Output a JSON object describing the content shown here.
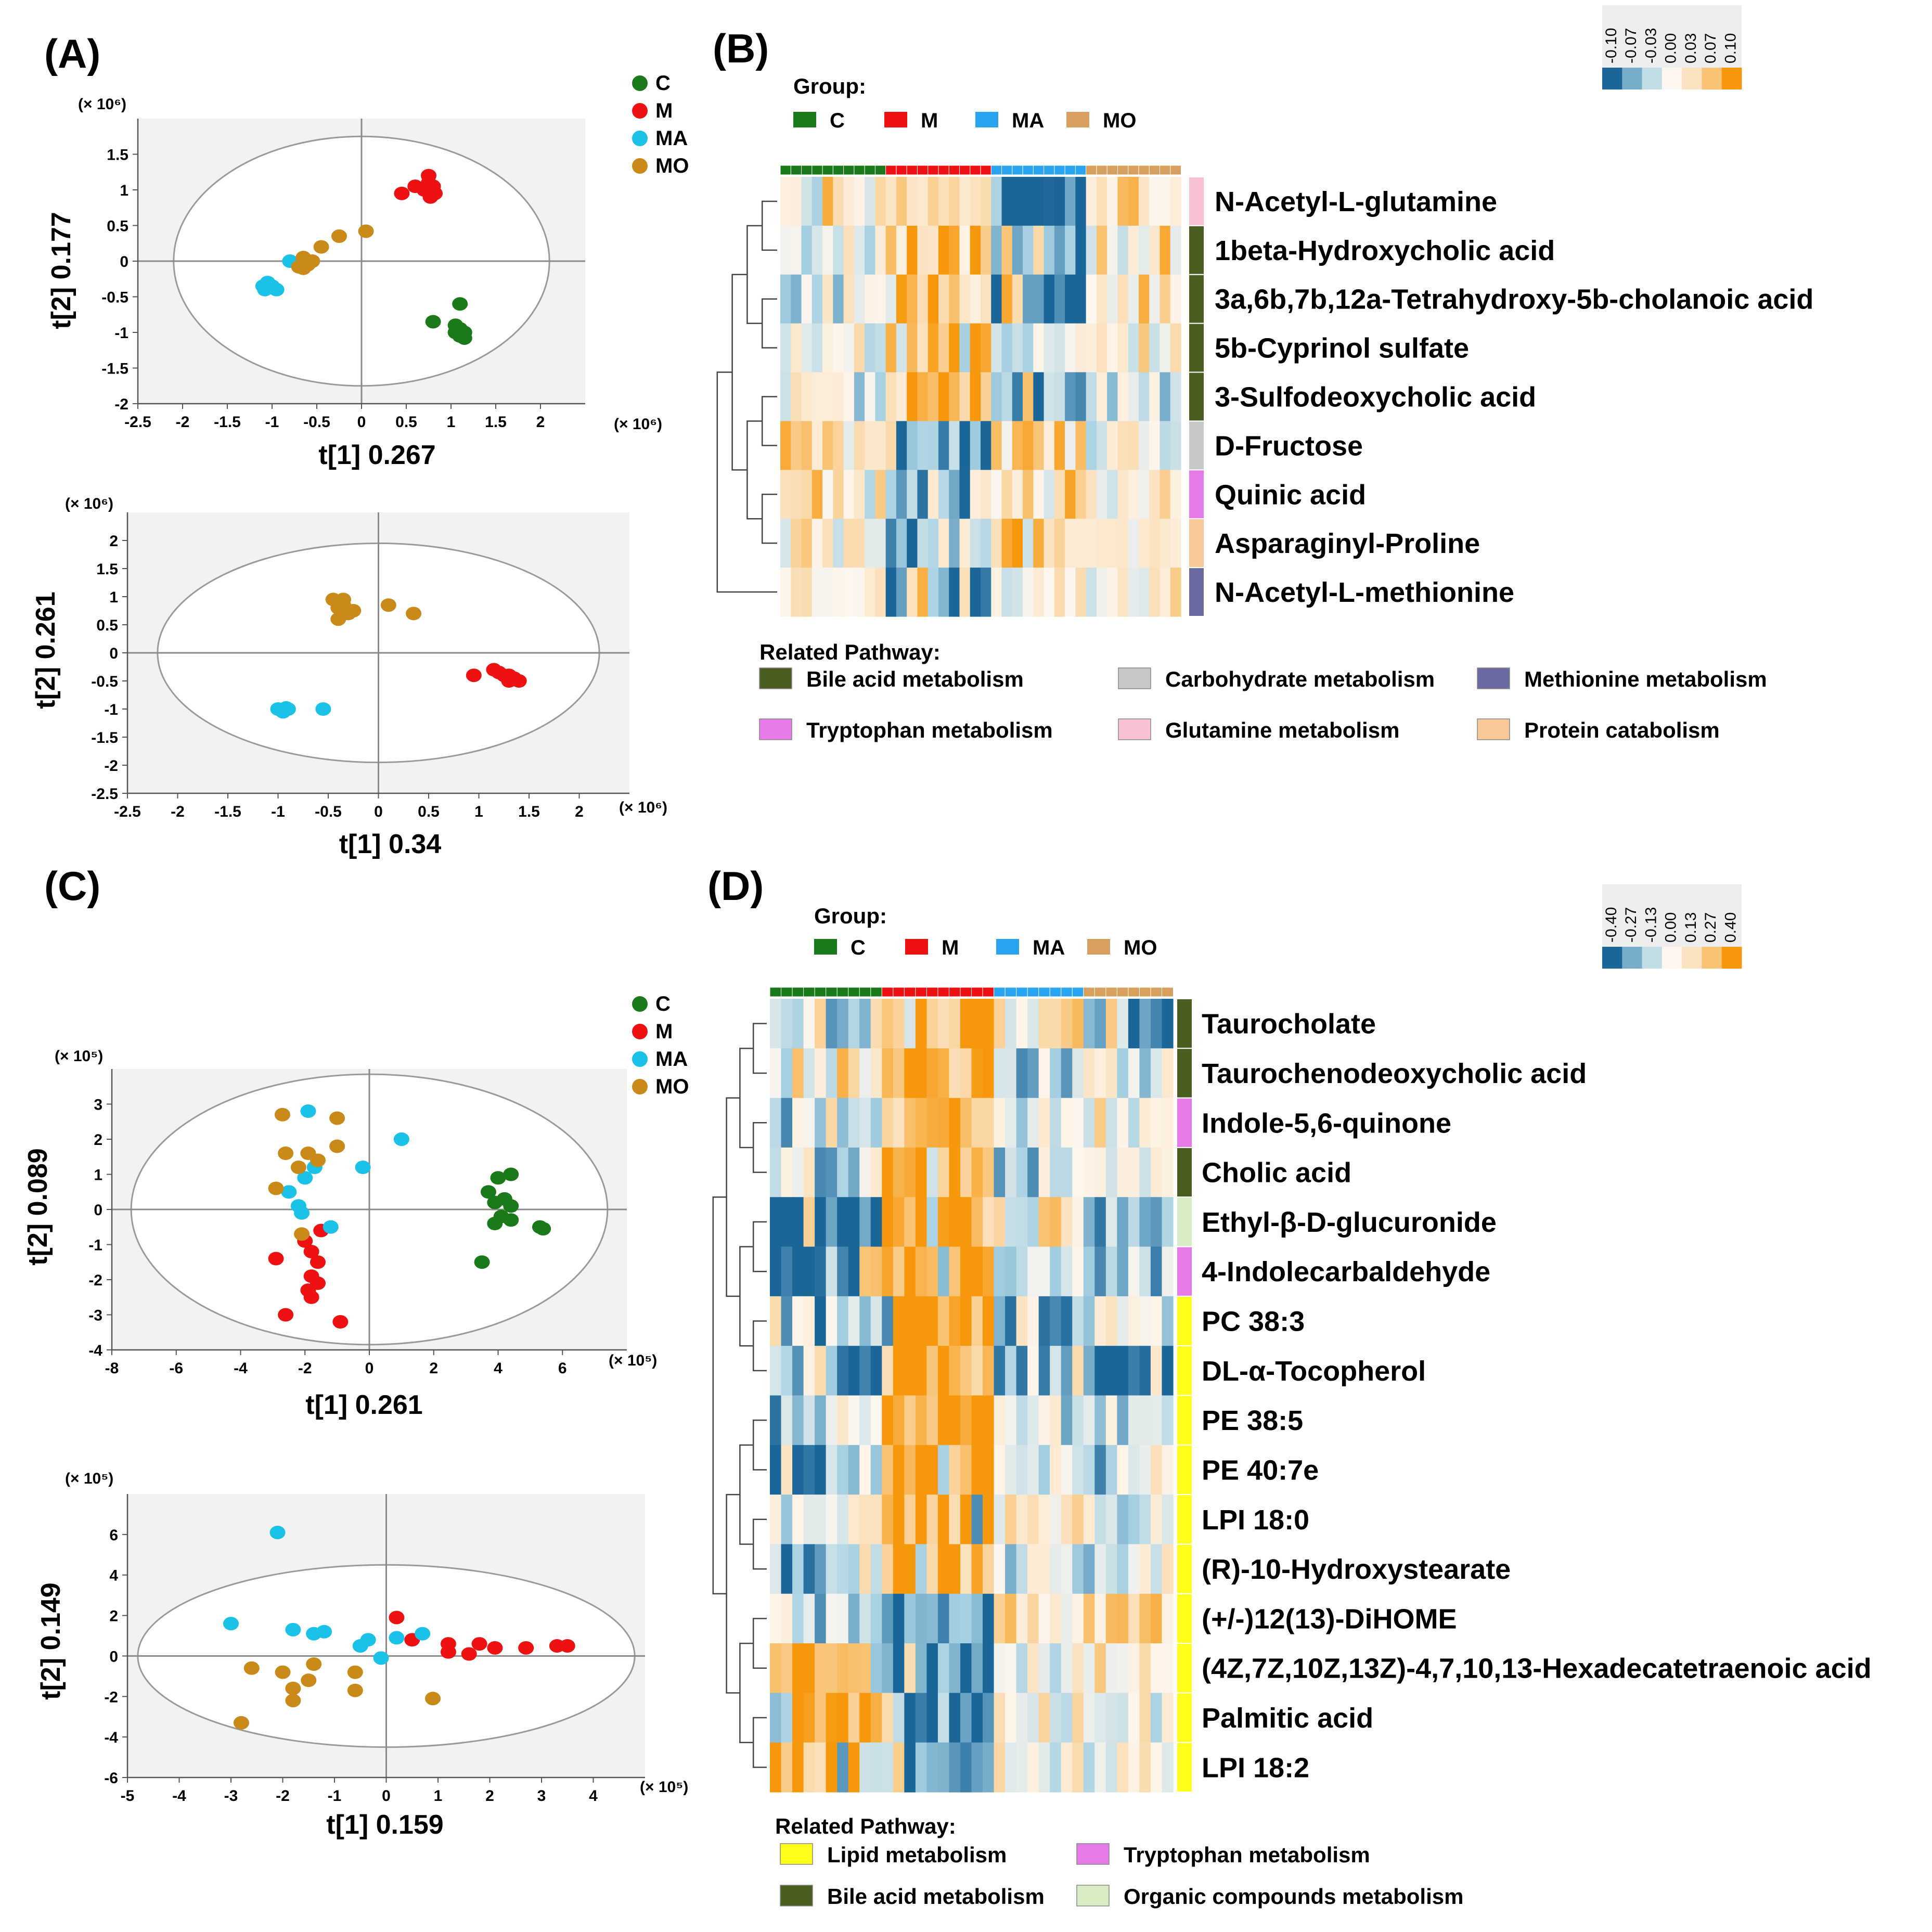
{
  "figure": {
    "groups": [
      {
        "key": "C",
        "label": "C",
        "color": "#1a7a1a"
      },
      {
        "key": "M",
        "label": "M",
        "color": "#ee1111"
      },
      {
        "key": "MA",
        "label": "MA",
        "color": "#19c2e6"
      },
      {
        "key": "MO",
        "label": "MO",
        "color": "#c98a1a"
      }
    ],
    "heat_group_colors": {
      "C": "#1a7a1a",
      "M": "#ee1111",
      "MA": "#2aa3f0",
      "MO": "#d8a05e"
    },
    "group_title": "Group:",
    "pathway_title": "Related Pathway:"
  },
  "chart_data": [
    {
      "id": "A1",
      "panel_label": "(A)",
      "type": "scatter",
      "xlabel": "t[1]  0.267",
      "ylabel": "t[2]  0.177",
      "x_unit": "(× 10⁶)",
      "y_unit": "(× 10⁶)",
      "xlim": [
        -2.5,
        2.5
      ],
      "ylim": [
        -2,
        2
      ],
      "xticks": [
        "-2.5",
        "-2",
        "-1.5",
        "-1",
        "-0.5",
        "0",
        "0.5",
        "1",
        "1.5",
        "2"
      ],
      "yticks": [
        "1.5",
        "1",
        "0.5",
        "0",
        "-0.5",
        "-1",
        "-1.5",
        "-2"
      ],
      "ellipse": {
        "rx": 2.1,
        "ry": 1.75
      },
      "series": [
        {
          "group": "C",
          "points": [
            [
              1.1,
              -0.6
            ],
            [
              0.8,
              -0.85
            ],
            [
              1.05,
              -0.9
            ],
            [
              1.1,
              -0.95
            ],
            [
              1.15,
              -1.0
            ],
            [
              1.05,
              -1.0
            ],
            [
              1.1,
              -1.05
            ],
            [
              1.15,
              -1.08
            ]
          ]
        },
        {
          "group": "M",
          "points": [
            [
              0.45,
              0.95
            ],
            [
              0.6,
              1.05
            ],
            [
              0.75,
              1.2
            ],
            [
              0.75,
              1.1
            ],
            [
              0.8,
              1.05
            ],
            [
              0.78,
              0.98
            ],
            [
              0.82,
              0.95
            ],
            [
              0.7,
              1.0
            ],
            [
              0.77,
              0.9
            ]
          ]
        },
        {
          "group": "MA",
          "points": [
            [
              -1.1,
              -0.35
            ],
            [
              -1.05,
              -0.3
            ],
            [
              -1.0,
              -0.35
            ],
            [
              -0.95,
              -0.4
            ],
            [
              -1.08,
              -0.4
            ],
            [
              -0.8,
              0.0
            ]
          ]
        },
        {
          "group": "MO",
          "points": [
            [
              0.05,
              0.42
            ],
            [
              -0.25,
              0.35
            ],
            [
              -0.45,
              0.2
            ],
            [
              -0.65,
              0.05
            ],
            [
              -0.55,
              0.0
            ],
            [
              -0.6,
              -0.05
            ],
            [
              -0.7,
              -0.08
            ],
            [
              -0.65,
              -0.1
            ]
          ]
        }
      ]
    },
    {
      "id": "A2",
      "type": "scatter",
      "xlabel": "t[1]  0.34",
      "ylabel": "t[2]  0.261",
      "x_unit": "(× 10⁶)",
      "y_unit": "(× 10⁶)",
      "xlim": [
        -2.5,
        2.5
      ],
      "ylim": [
        -2.5,
        2.5
      ],
      "xticks": [
        "-2.5",
        "-2",
        "-1.5",
        "-1",
        "-0.5",
        "0",
        "0.5",
        "1",
        "1.5",
        "2"
      ],
      "yticks": [
        "2",
        "1.5",
        "1",
        "0.5",
        "0",
        "-0.5",
        "-1",
        "-1.5",
        "-2",
        "-2.5"
      ],
      "ellipse": {
        "rx": 2.2,
        "ry": 1.95
      },
      "series": [
        {
          "group": "M",
          "points": [
            [
              0.95,
              -0.4
            ],
            [
              1.15,
              -0.3
            ],
            [
              1.2,
              -0.35
            ],
            [
              1.25,
              -0.4
            ],
            [
              1.3,
              -0.4
            ],
            [
              1.35,
              -0.45
            ],
            [
              1.4,
              -0.5
            ],
            [
              1.3,
              -0.5
            ]
          ]
        },
        {
          "group": "MA",
          "points": [
            [
              -1.0,
              -1.0
            ],
            [
              -0.95,
              -1.05
            ],
            [
              -0.9,
              -1.0
            ],
            [
              -0.55,
              -1.0
            ],
            [
              -0.92,
              -0.98
            ]
          ]
        },
        {
          "group": "MO",
          "points": [
            [
              -0.45,
              0.95
            ],
            [
              -0.35,
              0.95
            ],
            [
              -0.4,
              0.8
            ],
            [
              -0.3,
              0.7
            ],
            [
              -0.4,
              0.6
            ],
            [
              -0.25,
              0.75
            ],
            [
              0.1,
              0.85
            ],
            [
              0.35,
              0.7
            ],
            [
              -0.35,
              0.85
            ]
          ]
        }
      ]
    },
    {
      "id": "C1",
      "panel_label": "(C)",
      "type": "scatter",
      "xlabel": "t[1]  0.261",
      "ylabel": "t[2]  0.089",
      "x_unit": "(× 10⁵)",
      "y_unit": "(× 10⁵)",
      "xlim": [
        -8,
        8
      ],
      "ylim": [
        -4,
        4
      ],
      "xticks": [
        "-8",
        "-6",
        "-4",
        "-2",
        "0",
        "2",
        "4",
        "6"
      ],
      "yticks": [
        "3",
        "2",
        "1",
        "0",
        "-1",
        "-2",
        "-3",
        "-4"
      ],
      "ellipse": {
        "rx": 7.4,
        "ry": 3.85
      },
      "series": [
        {
          "group": "C",
          "points": [
            [
              3.7,
              0.5
            ],
            [
              4.0,
              0.9
            ],
            [
              4.4,
              1.0
            ],
            [
              4.2,
              0.3
            ],
            [
              3.9,
              0.2
            ],
            [
              4.4,
              0.1
            ],
            [
              4.1,
              -0.2
            ],
            [
              4.4,
              -0.3
            ],
            [
              3.9,
              -0.4
            ],
            [
              5.3,
              -0.5
            ],
            [
              5.4,
              -0.55
            ],
            [
              3.5,
              -1.5
            ]
          ]
        },
        {
          "group": "M",
          "points": [
            [
              -2.0,
              -0.9
            ],
            [
              -1.5,
              -0.6
            ],
            [
              -1.8,
              -1.2
            ],
            [
              -1.6,
              -1.5
            ],
            [
              -1.8,
              -1.9
            ],
            [
              -1.6,
              -2.1
            ],
            [
              -1.9,
              -2.3
            ],
            [
              -1.8,
              -2.5
            ],
            [
              -2.9,
              -1.4
            ],
            [
              -2.6,
              -3.0
            ],
            [
              -0.9,
              -3.2
            ]
          ]
        },
        {
          "group": "MA",
          "points": [
            [
              -1.9,
              2.8
            ],
            [
              1.0,
              2.0
            ],
            [
              -1.7,
              1.2
            ],
            [
              -0.2,
              1.2
            ],
            [
              -2.0,
              0.9
            ],
            [
              -2.5,
              0.5
            ],
            [
              -2.2,
              0.1
            ],
            [
              -2.1,
              -0.1
            ],
            [
              -1.2,
              -0.5
            ]
          ]
        },
        {
          "group": "MO",
          "points": [
            [
              -2.7,
              2.7
            ],
            [
              -2.6,
              1.6
            ],
            [
              -1.9,
              1.6
            ],
            [
              -1.0,
              2.6
            ],
            [
              -1.0,
              1.8
            ],
            [
              -1.6,
              1.4
            ],
            [
              -2.2,
              1.2
            ],
            [
              -2.9,
              0.6
            ],
            [
              -2.1,
              -0.7
            ]
          ]
        }
      ]
    },
    {
      "id": "C2",
      "type": "scatter",
      "xlabel": "t[1]  0.159",
      "ylabel": "t[2]  0.149",
      "x_unit": "(× 10⁵)",
      "y_unit": "(× 10⁵)",
      "xlim": [
        -5,
        5
      ],
      "ylim": [
        -6,
        8
      ],
      "xticks": [
        "-5",
        "-4",
        "-3",
        "-2",
        "-1",
        "0",
        "1",
        "2",
        "3",
        "4"
      ],
      "yticks": [
        "6",
        "4",
        "2",
        "0",
        "-2",
        "-4",
        "-6"
      ],
      "ellipse": {
        "rx": 4.8,
        "ry": 4.5
      },
      "series": [
        {
          "group": "M",
          "points": [
            [
              0.2,
              1.9
            ],
            [
              0.5,
              0.8
            ],
            [
              1.2,
              0.6
            ],
            [
              1.2,
              0.2
            ],
            [
              1.6,
              0.1
            ],
            [
              1.8,
              0.6
            ],
            [
              2.1,
              0.4
            ],
            [
              2.7,
              0.4
            ],
            [
              3.3,
              0.5
            ],
            [
              3.5,
              0.5
            ]
          ]
        },
        {
          "group": "MA",
          "points": [
            [
              -2.1,
              6.1
            ],
            [
              -3.0,
              1.6
            ],
            [
              -1.8,
              1.3
            ],
            [
              -1.4,
              1.1
            ],
            [
              -1.2,
              1.2
            ],
            [
              -0.5,
              0.5
            ],
            [
              -0.1,
              -0.1
            ],
            [
              0.2,
              0.9
            ],
            [
              0.7,
              1.1
            ],
            [
              -0.35,
              0.8
            ]
          ]
        },
        {
          "group": "MO",
          "points": [
            [
              -2.6,
              -0.6
            ],
            [
              -2.0,
              -0.8
            ],
            [
              -1.5,
              -1.2
            ],
            [
              -1.4,
              -0.4
            ],
            [
              -0.6,
              -0.8
            ],
            [
              -0.6,
              -1.7
            ],
            [
              -1.8,
              -1.6
            ],
            [
              -1.8,
              -2.2
            ],
            [
              -2.8,
              -3.3
            ],
            [
              0.9,
              -2.1
            ]
          ]
        }
      ]
    },
    {
      "id": "B",
      "panel_label": "(B)",
      "type": "heatmap",
      "rows": [
        "N-Acetyl-L-glutamine",
        "1beta-Hydroxycholic acid",
        "3a,6b,7b,12a-Tetrahydroxy-5b-cholanoic acid",
        "5b-Cyprinol sulfate",
        "3-Sulfodeoxycholic acid",
        "D-Fructose",
        "Quinic acid",
        "Asparaginyl-Proline",
        "N-Acetyl-L-methionine"
      ],
      "row_pathways": [
        "Glutamine metabolism",
        "Bile acid metabolism",
        "Bile acid metabolism",
        "Bile acid metabolism",
        "Bile acid metabolism",
        "Carbohydrate metabolism",
        "Tryptophan metabolism",
        "Protein catabolism",
        "Methionine metabolism"
      ],
      "column_groups": {
        "C": 10,
        "M": 10,
        "MA": 9,
        "MO": 9
      },
      "group_bias": [
        [
          0.3,
          0.6,
          -1.0,
          0.3
        ],
        [
          -0.2,
          0.6,
          -1.0,
          0.4
        ],
        [
          -0.1,
          0.6,
          -1.0,
          0.4
        ],
        [
          0.1,
          0.5,
          -0.2,
          0.2
        ],
        [
          -0.1,
          0.7,
          -0.8,
          -0.2
        ],
        [
          0.4,
          -0.8,
          0.4,
          -0.1
        ],
        [
          0.4,
          -0.6,
          0.5,
          0.2
        ],
        [
          0.2,
          -0.7,
          0.6,
          -0.2
        ],
        [
          0.1,
          -0.9,
          0.2,
          0.2
        ]
      ],
      "colorbar": {
        "ticks": [
          "-0.10",
          "-0.07",
          "-0.03",
          "0.00",
          "0.03",
          "0.07",
          "0.10"
        ]
      },
      "pathway_legend": [
        {
          "label": "Bile acid metabolism",
          "color": "#4a5e22"
        },
        {
          "label": "Carbohydrate metabolism",
          "color": "#c8c8c8"
        },
        {
          "label": "Methionine metabolism",
          "color": "#6a6aa0"
        },
        {
          "label": "Tryptophan metabolism",
          "color": "#e57ae8"
        },
        {
          "label": "Glutamine metabolism",
          "color": "#f9c1d4"
        },
        {
          "label": "Protein catabolism",
          "color": "#f7c99a"
        }
      ]
    },
    {
      "id": "D",
      "panel_label": "(D)",
      "type": "heatmap",
      "rows": [
        "Taurocholate",
        "Taurochenodeoxycholic acid",
        "Indole-5,6-quinone",
        "Cholic acid",
        "Ethyl-β-D-glucuronide",
        "4-Indolecarbaldehyde",
        "PC 38:3",
        "DL-α-Tocopherol",
        "PE 38:5",
        "PE 40:7e",
        "LPI 18:0",
        "(R)-10-Hydroxystearate",
        "(+/-)12(13)-DiHOME",
        "(4Z,7Z,10Z,13Z)-4,7,10,13-Hexadecatetraenoic acid",
        "Palmitic acid",
        "LPI 18:2"
      ],
      "row_pathways": [
        "Bile acid metabolism",
        "Bile acid metabolism",
        "Tryptophan metabolism",
        "Bile acid metabolism",
        "Organic compounds metabolism",
        "Tryptophan metabolism",
        "Lipid metabolism",
        "Lipid metabolism",
        "Lipid metabolism",
        "Lipid metabolism",
        "Lipid metabolism",
        "Lipid metabolism",
        "Lipid metabolism",
        "Lipid metabolism",
        "Lipid metabolism",
        "Lipid metabolism"
      ],
      "column_groups": {
        "C": 10,
        "M": 10,
        "MA": 8,
        "MO": 8
      },
      "group_bias": [
        [
          -0.4,
          0.9,
          0.2,
          -0.6
        ],
        [
          0.3,
          0.9,
          -0.3,
          -0.2
        ],
        [
          -0.4,
          0.9,
          -0.4,
          0.2
        ],
        [
          -0.3,
          0.9,
          -0.3,
          -0.3
        ],
        [
          -0.9,
          0.9,
          0.2,
          -0.4
        ],
        [
          -0.8,
          0.9,
          -0.2,
          -0.4
        ],
        [
          -0.5,
          0.9,
          -0.4,
          -0.2
        ],
        [
          -0.6,
          0.9,
          -0.4,
          -0.8
        ],
        [
          -0.5,
          0.9,
          -0.2,
          -0.4
        ],
        [
          -0.6,
          0.9,
          -0.1,
          -0.4
        ],
        [
          0.0,
          0.9,
          0.1,
          -0.3
        ],
        [
          -0.6,
          0.9,
          -0.2,
          -0.2
        ],
        [
          -0.3,
          -0.9,
          0.3,
          0.3
        ],
        [
          0.8,
          -0.9,
          0.1,
          0.4
        ],
        [
          0.8,
          -0.8,
          0.0,
          0.0
        ],
        [
          0.9,
          -0.8,
          0.0,
          -0.1
        ]
      ],
      "colorbar": {
        "ticks": [
          "-0.40",
          "-0.27",
          "-0.13",
          "0.00",
          "0.13",
          "0.27",
          "0.40"
        ]
      },
      "pathway_legend": [
        {
          "label": "Lipid metabolism",
          "color": "#ffff1a"
        },
        {
          "label": "Tryptophan metabolism",
          "color": "#e57ae8"
        },
        {
          "label": "Bile acid metabolism",
          "color": "#4a5e22"
        },
        {
          "label": "Organic compounds metabolism",
          "color": "#d9ecc6"
        }
      ]
    }
  ]
}
